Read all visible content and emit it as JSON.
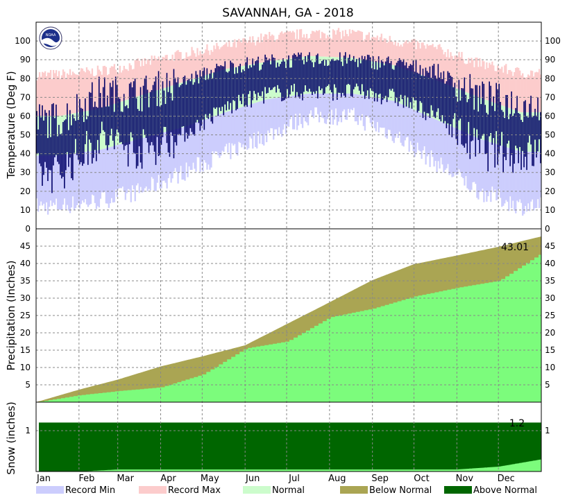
{
  "title": "SAVANNAH, GA - 2018",
  "logo_text": "NOAA",
  "colors": {
    "record_min": "#cccdfd",
    "record_max": "#fccccc",
    "normal": "#ccfccc",
    "observed_temp": "#000066",
    "precip_above": "#7cfc7c",
    "below_normal": "#aaa553",
    "above_normal": "#006600",
    "grid": "#888888"
  },
  "chart_data": [
    {
      "type": "bar",
      "panel": "temperature",
      "ylabel": "Temperature (Deg F)",
      "ylim": [
        0,
        110
      ],
      "yticks": [
        0,
        10,
        20,
        30,
        40,
        50,
        60,
        70,
        80,
        90,
        100
      ],
      "months": [
        "Jan",
        "Feb",
        "Mar",
        "Apr",
        "May",
        "Jun",
        "Jul",
        "Aug",
        "Sep",
        "Oct",
        "Nov",
        "Dec"
      ],
      "series": [
        {
          "name": "Record Max",
          "monthly_approx": [
            82,
            84,
            88,
            93,
            97,
            102,
            104,
            104,
            100,
            96,
            88,
            83
          ]
        },
        {
          "name": "Normal",
          "monthly_high_approx": [
            60,
            64,
            71,
            78,
            85,
            89,
            92,
            91,
            87,
            79,
            70,
            62
          ],
          "monthly_low_approx": [
            39,
            42,
            48,
            54,
            62,
            69,
            72,
            72,
            68,
            58,
            48,
            41
          ]
        },
        {
          "name": "Record Min",
          "monthly_approx": [
            12,
            15,
            20,
            30,
            40,
            50,
            60,
            60,
            50,
            35,
            20,
            12
          ]
        },
        {
          "name": "Observed",
          "monthly_high_approx": [
            58,
            72,
            72,
            78,
            86,
            89,
            90,
            90,
            88,
            84,
            70,
            66
          ],
          "monthly_low_approx": [
            30,
            48,
            42,
            50,
            64,
            72,
            73,
            73,
            70,
            60,
            42,
            40
          ]
        }
      ]
    },
    {
      "type": "area",
      "panel": "precipitation",
      "ylabel": "Precipitation (Inches)",
      "ylim": [
        0,
        50
      ],
      "yticks": [
        5,
        10,
        15,
        20,
        25,
        30,
        35,
        40,
        45
      ],
      "annotation": "43.01",
      "series": [
        {
          "name": "Normal",
          "monthly_cumulative": [
            0,
            3.6,
            6.5,
            10.3,
            13.2,
            16.4,
            22.5,
            28.8,
            35.2,
            39.8,
            42.3,
            44.8,
            47.8
          ]
        },
        {
          "name": "Observed",
          "monthly_cumulative": [
            0,
            2.0,
            3.2,
            4.3,
            8.0,
            15.5,
            17.5,
            24.5,
            27.0,
            30.5,
            33.0,
            35.0,
            43.01
          ]
        }
      ]
    },
    {
      "type": "area",
      "panel": "snow",
      "ylabel": "Snow (inches)",
      "ylim": [
        0,
        1.7
      ],
      "yticks": [
        1
      ],
      "annotation": "1.2",
      "series": [
        {
          "name": "Observed",
          "value": 1.2,
          "start": "Jan 3"
        },
        {
          "name": "Normal",
          "monthly_cumulative": [
            0,
            0,
            0.05,
            0.05,
            0.05,
            0.05,
            0.05,
            0.05,
            0.05,
            0.05,
            0.05,
            0.12,
            0.3
          ]
        }
      ]
    }
  ],
  "legend": [
    {
      "label": "Record Min",
      "color_key": "record_min"
    },
    {
      "label": "Record Max",
      "color_key": "record_max"
    },
    {
      "label": "Normal",
      "color_key": "normal"
    },
    {
      "label": "Below Normal",
      "color_key": "below_normal"
    },
    {
      "label": "Above Normal",
      "color_key": "above_normal"
    }
  ]
}
